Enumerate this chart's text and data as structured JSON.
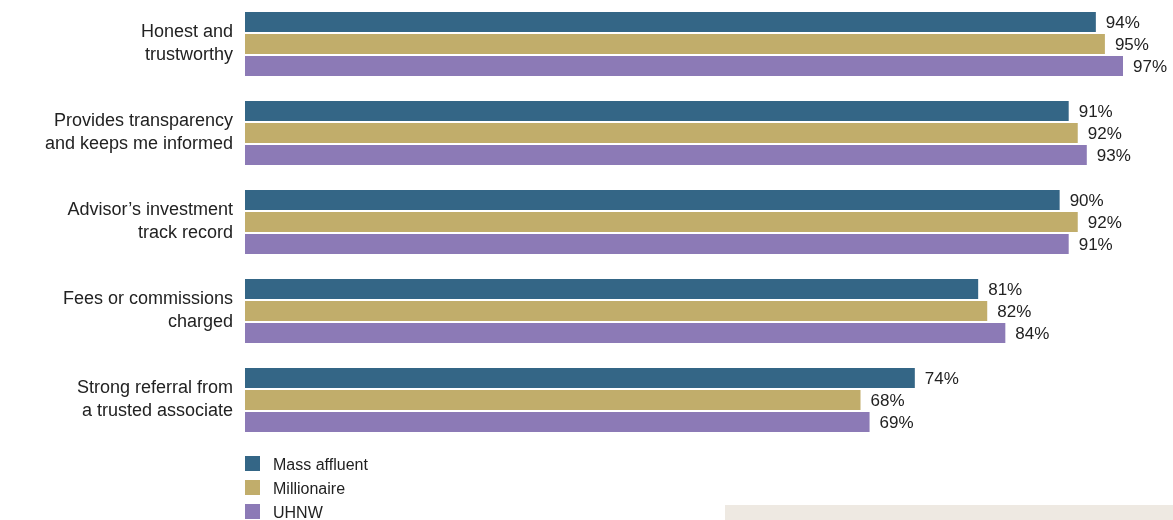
{
  "chart_data": {
    "type": "bar",
    "orientation": "horizontal",
    "tick_labels": "y",
    "legend": "bottom",
    "categories": [
      "Honest and trustworthy",
      "Provides transparency and keeps me informed",
      "Advisor’s investment track record",
      "Fees or commissions charged",
      "Strong referral from a trusted associate"
    ],
    "series": [
      {
        "name": "Mass affluent",
        "color": "#346686",
        "values": [
          94,
          91,
          90,
          81,
          74
        ],
        "value_labels": [
          "94%",
          "91%",
          "90%",
          "81%",
          "74%"
        ]
      },
      {
        "name": "Millionaire",
        "color": "#c1ad6b",
        "values": [
          95,
          92,
          92,
          82,
          68
        ],
        "value_labels": [
          "95%",
          "92%",
          "92%",
          "82%",
          "68%"
        ]
      },
      {
        "name": "UHNW",
        "color": "#8c7ab6",
        "values": [
          97,
          93,
          91,
          84,
          69
        ],
        "value_labels": [
          "97%",
          "93%",
          "91%",
          "84%",
          "69%"
        ]
      }
    ]
  }
}
